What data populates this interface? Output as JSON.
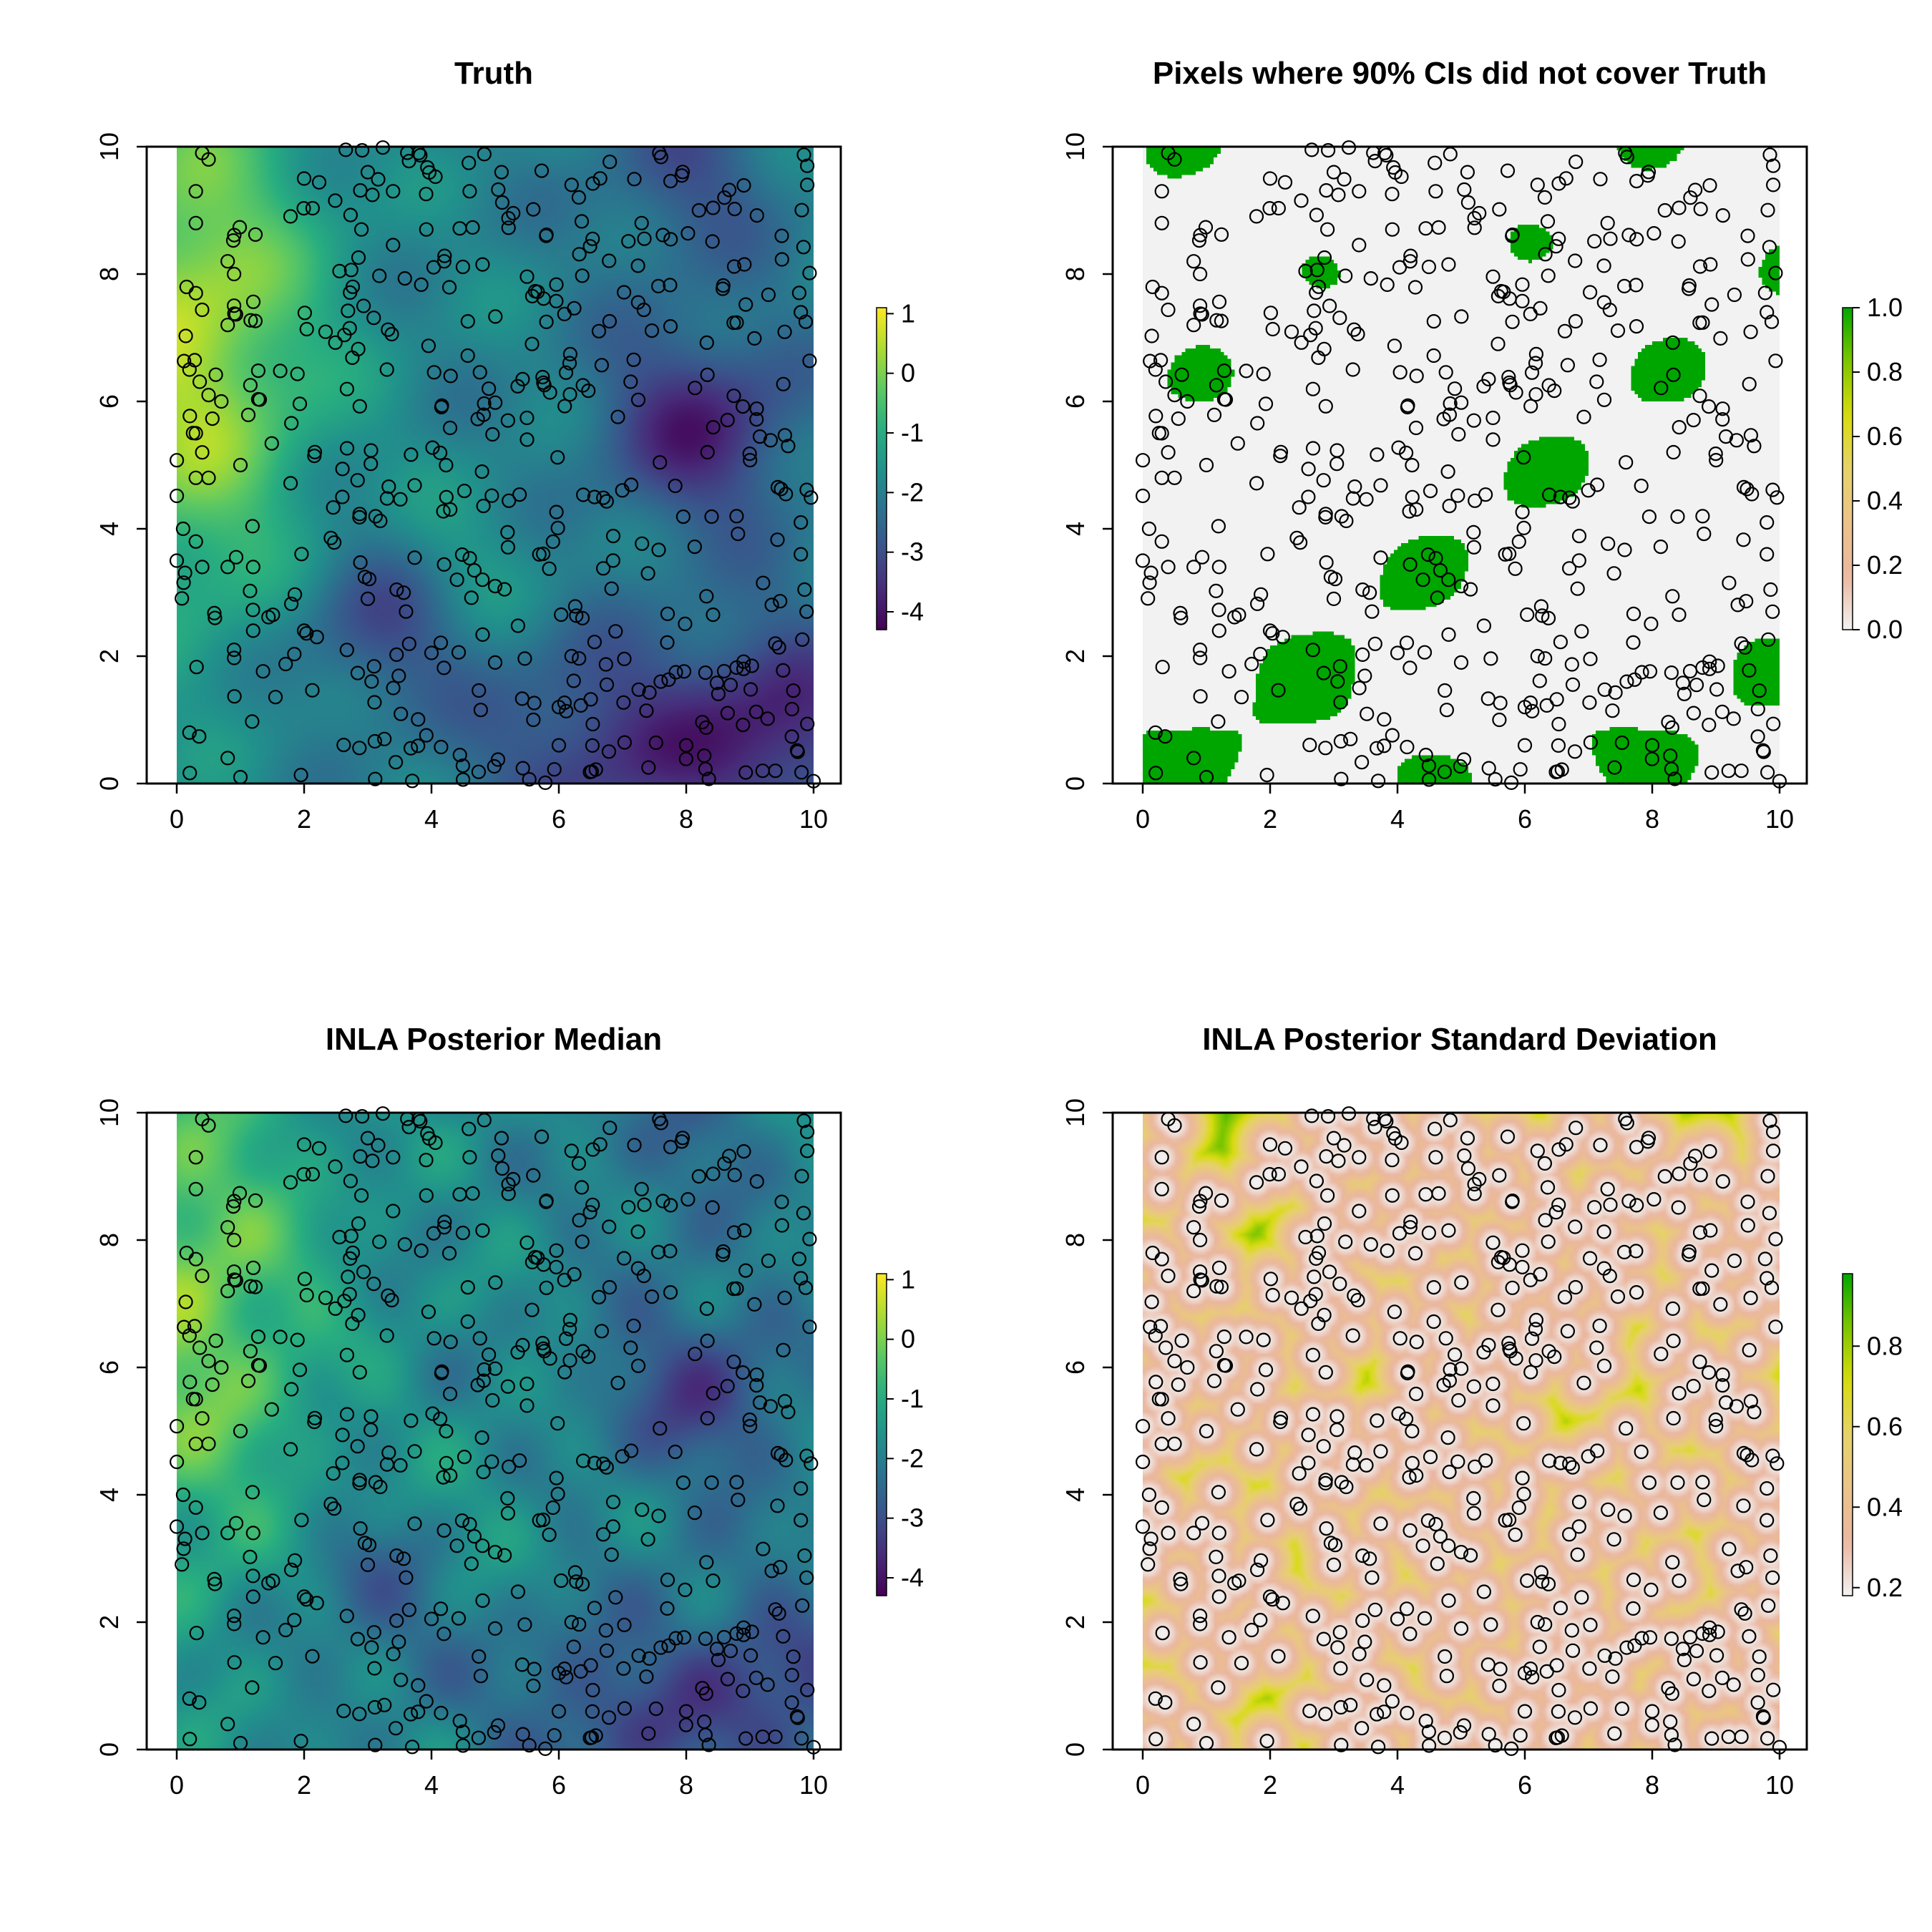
{
  "chart_data": [
    {
      "type": "heatmap",
      "title": "Truth",
      "palette": "viridis",
      "field": "truth",
      "xlim": [
        0,
        10
      ],
      "ylim": [
        0,
        10
      ],
      "xticks": [
        "0",
        "2",
        "4",
        "6",
        "8",
        "10"
      ],
      "yticks": [
        "0",
        "2",
        "4",
        "6",
        "8",
        "10"
      ],
      "colorbar": {
        "ticks": [
          "-4",
          "-3",
          "-2",
          "-1",
          "0",
          "1"
        ],
        "values": [
          -4,
          -3,
          -2,
          -1,
          0,
          1
        ],
        "range": [
          -4.3,
          1.1
        ]
      },
      "xlabel": "",
      "ylabel": ""
    },
    {
      "type": "heatmap",
      "title": "Pixels where 90% CIs did not cover Truth",
      "palette": "terrain",
      "field": "coverage",
      "xlim": [
        0,
        10
      ],
      "ylim": [
        0,
        10
      ],
      "xticks": [
        "0",
        "2",
        "4",
        "6",
        "8",
        "10"
      ],
      "yticks": [
        "0",
        "2",
        "4",
        "6",
        "8",
        "10"
      ],
      "colorbar": {
        "ticks": [
          "0.0",
          "0.2",
          "0.4",
          "0.6",
          "0.8",
          "1.0"
        ],
        "values": [
          0,
          0.2,
          0.4,
          0.6,
          0.8,
          1.0
        ],
        "range": [
          0,
          1
        ]
      },
      "xlabel": "",
      "ylabel": ""
    },
    {
      "type": "heatmap",
      "title": "INLA Posterior Median",
      "palette": "viridis",
      "field": "median",
      "xlim": [
        0,
        10
      ],
      "ylim": [
        0,
        10
      ],
      "xticks": [
        "0",
        "2",
        "4",
        "6",
        "8",
        "10"
      ],
      "yticks": [
        "0",
        "2",
        "4",
        "6",
        "8",
        "10"
      ],
      "colorbar": {
        "ticks": [
          "-4",
          "-3",
          "-2",
          "-1",
          "0",
          "1"
        ],
        "values": [
          -4,
          -3,
          -2,
          -1,
          0,
          1
        ],
        "range": [
          -4.3,
          1.1
        ]
      },
      "xlabel": "",
      "ylabel": ""
    },
    {
      "type": "heatmap",
      "title": "INLA Posterior Standard Deviation",
      "palette": "terrain",
      "field": "sd",
      "xlim": [
        0,
        10
      ],
      "ylim": [
        0,
        10
      ],
      "xticks": [
        "0",
        "2",
        "4",
        "6",
        "8",
        "10"
      ],
      "yticks": [
        "0",
        "2",
        "4",
        "6",
        "8",
        "10"
      ],
      "colorbar": {
        "ticks": [
          "0.2",
          "0.4",
          "0.6",
          "0.8"
        ],
        "values": [
          0.2,
          0.4,
          0.6,
          0.8
        ],
        "range": [
          0.18,
          0.98
        ]
      },
      "xlabel": "",
      "ylabel": ""
    }
  ],
  "observation_points": {
    "marker": "open-circle",
    "count": 500,
    "sample": [
      [
        0.4,
        9.9
      ],
      [
        0.5,
        9.8
      ],
      [
        0.3,
        9.3
      ],
      [
        0.3,
        8.8
      ],
      [
        0.8,
        8.2
      ],
      [
        0.9,
        8.0
      ],
      [
        0.3,
        7.7
      ],
      [
        0.8,
        7.2
      ],
      [
        0.2,
        6.5
      ],
      [
        0.5,
        6.1
      ],
      [
        0.7,
        6.0
      ],
      [
        0.3,
        5.5
      ],
      [
        0.4,
        5.2
      ],
      [
        0.3,
        4.8
      ],
      [
        0.5,
        4.8
      ],
      [
        1.0,
        5.0
      ],
      [
        0.1,
        4.0
      ],
      [
        0.3,
        3.8
      ],
      [
        0.0,
        3.5
      ],
      [
        0.4,
        3.4
      ],
      [
        0.8,
        3.4
      ],
      [
        1.2,
        3.4
      ],
      [
        0.6,
        2.6
      ],
      [
        0.9,
        2.1
      ],
      [
        1.2,
        2.4
      ],
      [
        0.2,
        0.8
      ],
      [
        0.8,
        0.4
      ],
      [
        1.0,
        0.1
      ],
      [
        2.0,
        2.4
      ],
      [
        2.2,
        2.3
      ],
      [
        3.0,
        2.9
      ],
      [
        3.4,
        1.5
      ],
      [
        3.6,
        2.7
      ],
      [
        4.4,
        3.2
      ],
      [
        4.8,
        3.2
      ],
      [
        5.0,
        3.1
      ],
      [
        5.0,
        1.9
      ],
      [
        5.6,
        1.0
      ],
      [
        6.0,
        1.2
      ],
      [
        6.2,
        2.0
      ],
      [
        6.0,
        0.6
      ],
      [
        7.4,
        3.3
      ],
      [
        7.6,
        1.6
      ],
      [
        8.0,
        0.6
      ],
      [
        8.9,
        1.8
      ],
      [
        9.2,
        0.2
      ],
      [
        9.4,
        0.2
      ],
      [
        9.8,
        4.1
      ],
      [
        9.8,
        3.6
      ],
      [
        9.6,
        5.3
      ],
      [
        9.8,
        7.4
      ],
      [
        9.5,
        8.6
      ],
      [
        9.9,
        9.7
      ],
      [
        9.9,
        9.4
      ],
      [
        8.6,
        9.2
      ],
      [
        8.2,
        9.0
      ],
      [
        7.3,
        8.8
      ],
      [
        6.2,
        9.4
      ],
      [
        5.8,
        8.6
      ],
      [
        5.2,
        5.7
      ],
      [
        5.5,
        5.4
      ],
      [
        4.9,
        6.2
      ],
      [
        4.3,
        6.4
      ],
      [
        3.3,
        6.5
      ],
      [
        2.6,
        4.5
      ],
      [
        3.0,
        9.6
      ],
      [
        3.8,
        9.9
      ],
      [
        4.6,
        9.3
      ],
      [
        5.1,
        9.6
      ],
      [
        4.2,
        8.2
      ],
      [
        2.0,
        9.5
      ],
      [
        2.9,
        8.7
      ]
    ]
  }
}
